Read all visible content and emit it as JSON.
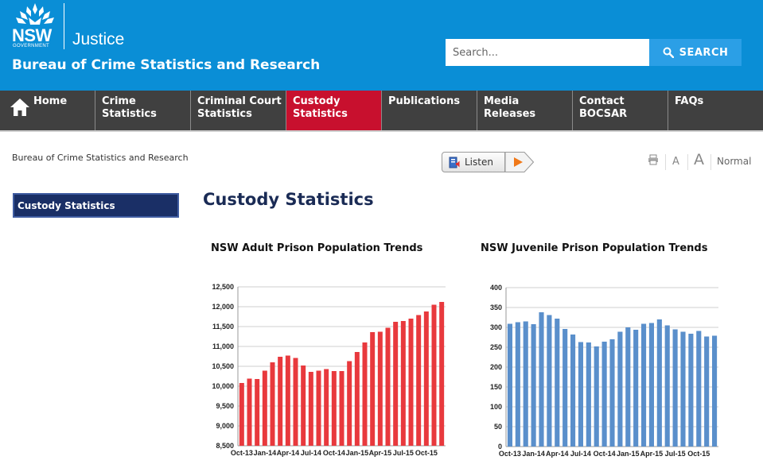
{
  "header": {
    "logo_main": "NSW",
    "logo_sub": "GOVERNMENT",
    "brand": "Justice",
    "site_title": "Bureau of Crime Statistics and Research"
  },
  "search": {
    "placeholder": "Search...",
    "button_label": "SEARCH"
  },
  "nav": {
    "items": [
      {
        "line1": "Home",
        "line2": ""
      },
      {
        "line1": "Crime",
        "line2": "Statistics"
      },
      {
        "line1": "Criminal Court",
        "line2": "Statistics"
      },
      {
        "line1": "Custody",
        "line2": "Statistics"
      },
      {
        "line1": "Publications",
        "line2": ""
      },
      {
        "line1": "Media",
        "line2": "Releases"
      },
      {
        "line1": "Contact",
        "line2": "BOCSAR"
      },
      {
        "line1": "FAQs",
        "line2": ""
      }
    ],
    "active_index": 3
  },
  "breadcrumb": "Bureau of Crime Statistics and Research",
  "listen": {
    "label": "Listen"
  },
  "font_tools": {
    "small": "A",
    "large": "A",
    "normal": "Normal"
  },
  "sidebar": {
    "items": [
      {
        "label": "Custody Statistics"
      }
    ]
  },
  "main": {
    "title": "Custody Statistics"
  },
  "colors": {
    "header": "#0a8ed6",
    "nav": "#404040",
    "active": "#c8102e",
    "adult_bar": "#e8393d",
    "juvenile_bar": "#5a8fcb"
  },
  "chart_data": [
    {
      "type": "bar",
      "title": "NSW Adult Prison Population Trends",
      "ylim": [
        8500,
        12500
      ],
      "yticks": [
        "8,500",
        "9,000",
        "9,500",
        "10,000",
        "10,500",
        "11,000",
        "11,500",
        "12,000",
        "12,500"
      ],
      "xtick_labels": [
        "Oct-13",
        "Jan-14",
        "Apr-14",
        "Jul-14",
        "Oct-14",
        "Jan-15",
        "Apr-15",
        "Jul-15",
        "Oct-15"
      ],
      "categories": [
        "Oct-13",
        "Nov-13",
        "Dec-13",
        "Jan-14",
        "Feb-14",
        "Mar-14",
        "Apr-14",
        "May-14",
        "Jun-14",
        "Jul-14",
        "Aug-14",
        "Sep-14",
        "Oct-14",
        "Nov-14",
        "Dec-14",
        "Jan-15",
        "Feb-15",
        "Mar-15",
        "Apr-15",
        "May-15",
        "Jun-15",
        "Jul-15",
        "Aug-15",
        "Sep-15",
        "Oct-15",
        "Nov-15",
        "Dec-15"
      ],
      "values": [
        10080,
        10190,
        10180,
        10390,
        10600,
        10740,
        10770,
        10710,
        10520,
        10360,
        10390,
        10430,
        10380,
        10380,
        10630,
        10860,
        11100,
        11360,
        11370,
        11470,
        11620,
        11640,
        11700,
        11790,
        11880,
        12050,
        12120
      ]
    },
    {
      "type": "bar",
      "title": "NSW Juvenile Prison Population Trends",
      "ylim": [
        0,
        400
      ],
      "yticks": [
        "0",
        "50",
        "100",
        "150",
        "200",
        "250",
        "300",
        "350",
        "400"
      ],
      "xtick_labels": [
        "Oct-13",
        "Jan-14",
        "Apr-14",
        "Jul-14",
        "Oct-14",
        "Jan-15",
        "Apr-15",
        "Jul-15",
        "Oct-15"
      ],
      "categories": [
        "Oct-13",
        "Nov-13",
        "Dec-13",
        "Jan-14",
        "Feb-14",
        "Mar-14",
        "Apr-14",
        "May-14",
        "Jun-14",
        "Jul-14",
        "Aug-14",
        "Sep-14",
        "Oct-14",
        "Nov-14",
        "Dec-14",
        "Jan-15",
        "Feb-15",
        "Mar-15",
        "Apr-15",
        "May-15",
        "Jun-15",
        "Jul-15",
        "Aug-15",
        "Sep-15",
        "Oct-15",
        "Nov-15",
        "Dec-15"
      ],
      "values": [
        309,
        313,
        315,
        308,
        338,
        331,
        322,
        296,
        282,
        263,
        262,
        252,
        264,
        270,
        289,
        300,
        294,
        309,
        311,
        320,
        305,
        295,
        289,
        284,
        291,
        277,
        279
      ]
    }
  ]
}
